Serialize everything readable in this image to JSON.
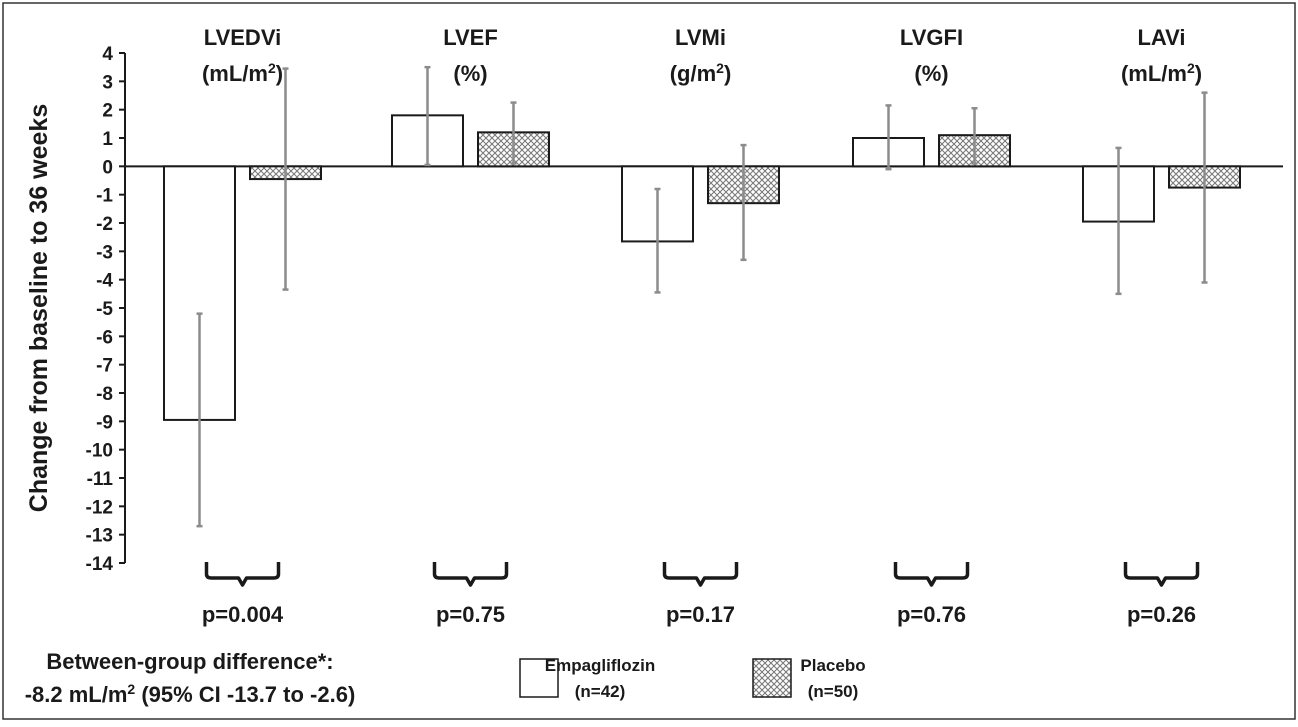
{
  "chart_data": {
    "type": "bar",
    "ylabel": "Change from baseline to 36 weeks",
    "ylim": [
      -14,
      4
    ],
    "yticks": [
      4,
      3,
      2,
      1,
      0,
      -1,
      -2,
      -3,
      -4,
      -5,
      -6,
      -7,
      -8,
      -9,
      -10,
      -11,
      -12,
      -13,
      -14
    ],
    "grid": false,
    "categories": [
      {
        "label_main": "LVEDVi",
        "unit_pre": "(mL/m",
        "unit_sup": "2",
        "unit_post": ")",
        "p_value": "p=0.004"
      },
      {
        "label_main": "LVEF",
        "unit_pre": "(%)",
        "unit_sup": "",
        "unit_post": "",
        "p_value": "p=0.75"
      },
      {
        "label_main": "LVMi",
        "unit_pre": "(g/m",
        "unit_sup": "2",
        "unit_post": ")",
        "p_value": "p=0.17"
      },
      {
        "label_main": "LVGFI",
        "unit_pre": "(%)",
        "unit_sup": "",
        "unit_post": "",
        "p_value": "p=0.76"
      },
      {
        "label_main": "LAVi",
        "unit_pre": "(mL/m",
        "unit_sup": "2",
        "unit_post": ")",
        "p_value": "p=0.26"
      }
    ],
    "series": [
      {
        "name": "Empagliflozin",
        "n": "(n=42)",
        "pattern": "open",
        "values": [
          -8.95,
          1.8,
          -2.65,
          1.0,
          -1.95
        ],
        "ci_low": [
          -12.7,
          0.05,
          -4.45,
          -0.1,
          -4.5
        ],
        "ci_high": [
          -5.2,
          3.5,
          -0.8,
          2.15,
          0.65
        ]
      },
      {
        "name": "Placebo",
        "n": "(n=50)",
        "pattern": "crosshatch",
        "values": [
          -0.45,
          1.2,
          -1.3,
          1.1,
          -0.75
        ],
        "ci_low": [
          -4.35,
          0.1,
          -3.3,
          0.1,
          -4.1
        ],
        "ci_high": [
          3.45,
          2.25,
          0.75,
          2.05,
          2.6
        ]
      }
    ],
    "legend_position": "bottom-center",
    "annotation": {
      "line1": "Between-group difference*:",
      "line2_pre": "-8.2 mL/m",
      "line2_sup": "2",
      "line2_post": " (95% CI -13.7 to -2.6)"
    },
    "colors": {
      "bar_stroke": "#1a1a1a",
      "bar_fill": "#ffffff",
      "hatch": "#7a7a7a",
      "error_bar": "#8c8c8c",
      "axis": "#1a1a1a",
      "text": "#1a1a1a",
      "border": "#333333"
    }
  }
}
